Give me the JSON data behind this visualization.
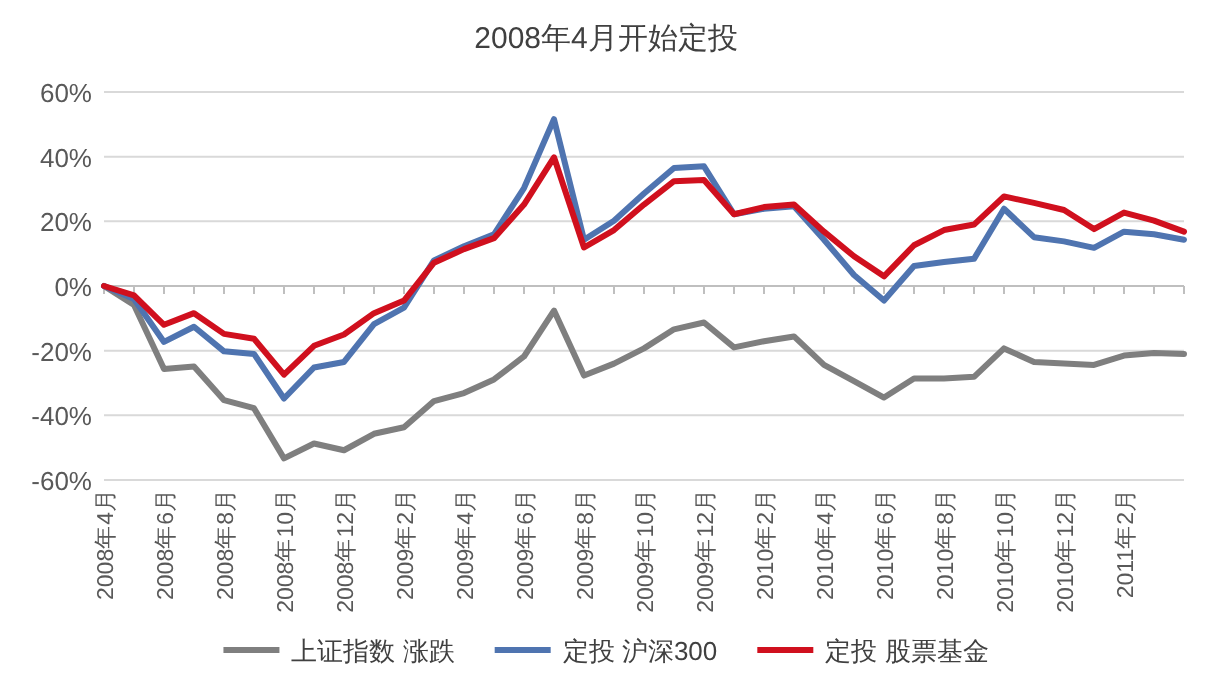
{
  "chart_data": {
    "type": "line",
    "title": "2008年4月开始定投",
    "categories": [
      "2008年4月",
      null,
      "2008年6月",
      null,
      "2008年8月",
      null,
      "2008年10月",
      null,
      "2008年12月",
      null,
      "2009年2月",
      null,
      "2009年4月",
      null,
      "2009年6月",
      null,
      "2009年8月",
      null,
      "2009年10月",
      null,
      "2009年12月",
      null,
      "2010年2月",
      null,
      "2010年4月",
      null,
      "2010年6月",
      null,
      "2010年8月",
      null,
      "2010年10月",
      null,
      "2010年12月",
      null,
      "2011年2月",
      null,
      null
    ],
    "series": [
      {
        "name": "上证指数 涨跌",
        "color": "#7f7f7f",
        "values": [
          0,
          -5.9,
          -25.7,
          -24.9,
          -35.3,
          -37.8,
          -53.3,
          -48.7,
          -50.8,
          -45.7,
          -43.7,
          -35.6,
          -33.1,
          -28.9,
          -21.8,
          -7.6,
          -27.7,
          -24,
          -19.3,
          -13.4,
          -11.3,
          -19,
          -17.1,
          -15.6,
          -24.4,
          -29.4,
          -34.5,
          -28.6,
          -28.6,
          -28.1,
          -19.3,
          -23.5,
          -24,
          -24.4,
          -21.5,
          -20.7,
          -21
        ]
      },
      {
        "name": "定投 沪深300",
        "color": "#4f74b0",
        "values": [
          0,
          -4,
          -17.3,
          -12.6,
          -20.2,
          -21,
          -34.8,
          -25.2,
          -23.5,
          -11.8,
          -6.7,
          7.9,
          12.3,
          16,
          30.3,
          51.6,
          14.3,
          20.2,
          28.6,
          36.5,
          37,
          22.2,
          23.9,
          24.7,
          14.3,
          3.4,
          -4.5,
          6.2,
          7.4,
          8.4,
          23.9,
          15.1,
          13.8,
          11.8,
          16.8,
          16,
          14.3
        ]
      },
      {
        "name": "定投 股票基金",
        "color": "#d0101e",
        "values": [
          0,
          -2.9,
          -12,
          -8.4,
          -14.8,
          -16.3,
          -27.4,
          -18.5,
          -15,
          -8.4,
          -4.5,
          7.2,
          11.4,
          14.8,
          25.2,
          39.8,
          11.9,
          17.3,
          25.2,
          32.4,
          32.8,
          22.2,
          24.4,
          25.2,
          16.8,
          9.2,
          3,
          12.6,
          17.3,
          19,
          27.7,
          25.7,
          23.5,
          17.6,
          22.7,
          20.2,
          16.8
        ]
      }
    ],
    "ylim": [
      -60,
      60
    ],
    "yticks": [
      {
        "value": -60,
        "label": "-60%"
      },
      {
        "value": -40,
        "label": "-40%"
      },
      {
        "value": -20,
        "label": "-20%"
      },
      {
        "value": 0,
        "label": "0%"
      },
      {
        "value": 20,
        "label": "20%"
      },
      {
        "value": 40,
        "label": "40%"
      },
      {
        "value": 60,
        "label": "60%"
      }
    ],
    "grid": "y",
    "legend": "bottom",
    "marker": "none",
    "line_style": "solid"
  }
}
